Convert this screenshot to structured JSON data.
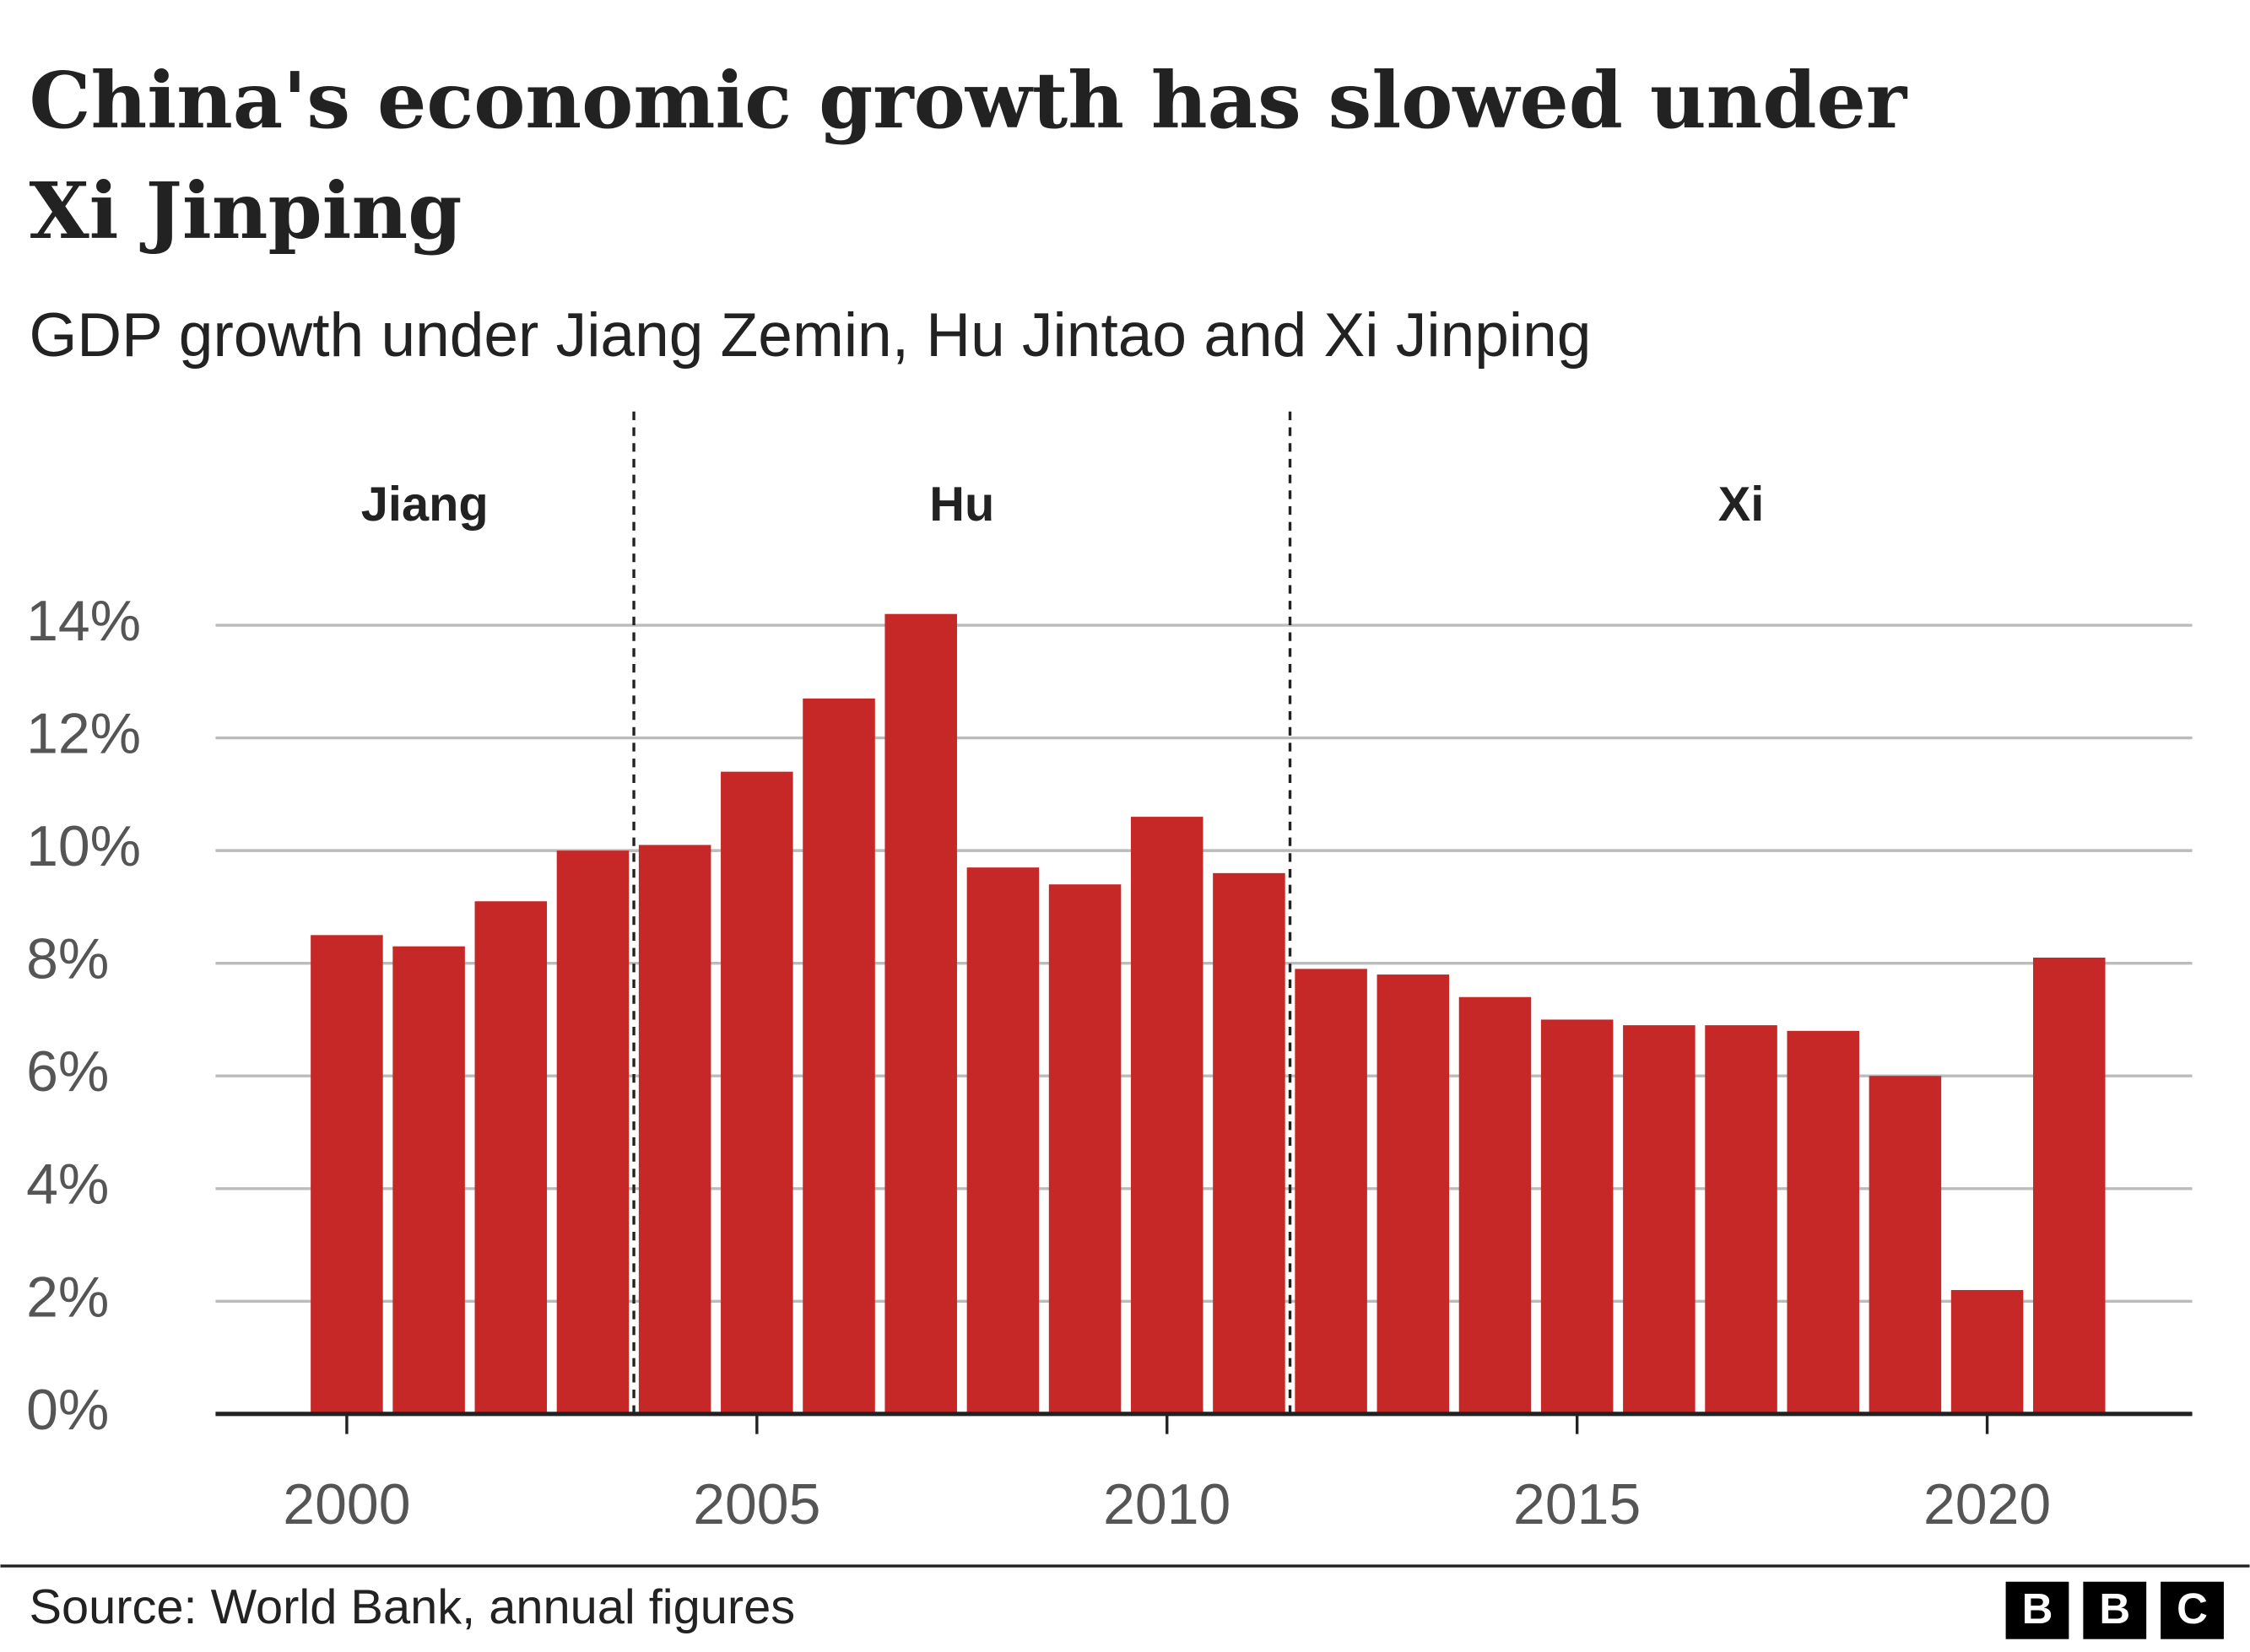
{
  "chart_data": {
    "type": "bar",
    "title": [
      "China's economic growth has slowed under",
      "Xi Jinping"
    ],
    "subtitle": "GDP growth under Jiang Zemin, Hu Jintao and Xi Jinping",
    "source": "Source: World Bank, annual figures",
    "logo": [
      "B",
      "B",
      "C"
    ],
    "x": [
      2000,
      2001,
      2002,
      2003,
      2004,
      2005,
      2006,
      2007,
      2008,
      2009,
      2010,
      2011,
      2012,
      2013,
      2014,
      2015,
      2016,
      2017,
      2018,
      2019,
      2020,
      2021
    ],
    "values": [
      8.5,
      8.3,
      9.1,
      10.0,
      10.1,
      11.4,
      12.7,
      14.2,
      9.7,
      9.4,
      10.6,
      9.6,
      7.9,
      7.8,
      7.4,
      7.0,
      6.9,
      6.9,
      6.8,
      6.0,
      2.2,
      8.1
    ],
    "color": "#c62828",
    "xlim": [
      1998.4,
      2022.5
    ],
    "xticks": [
      2000,
      2005,
      2010,
      2015,
      2020
    ],
    "ylim": [
      0,
      14
    ],
    "yticks": [
      {
        "value": 0,
        "label": "0%"
      },
      {
        "value": 2,
        "label": "2%"
      },
      {
        "value": 4,
        "label": "4%"
      },
      {
        "value": 6,
        "label": "6%"
      },
      {
        "value": 8,
        "label": "8%"
      },
      {
        "value": 10,
        "label": "10%"
      },
      {
        "value": 12,
        "label": "12%"
      },
      {
        "value": 14,
        "label": "14%"
      }
    ],
    "grid": true,
    "eras": [
      {
        "label": "Jiang",
        "end": 2003.5
      },
      {
        "label": "Hu",
        "end": 2011.5
      },
      {
        "label": "Xi"
      }
    ]
  }
}
